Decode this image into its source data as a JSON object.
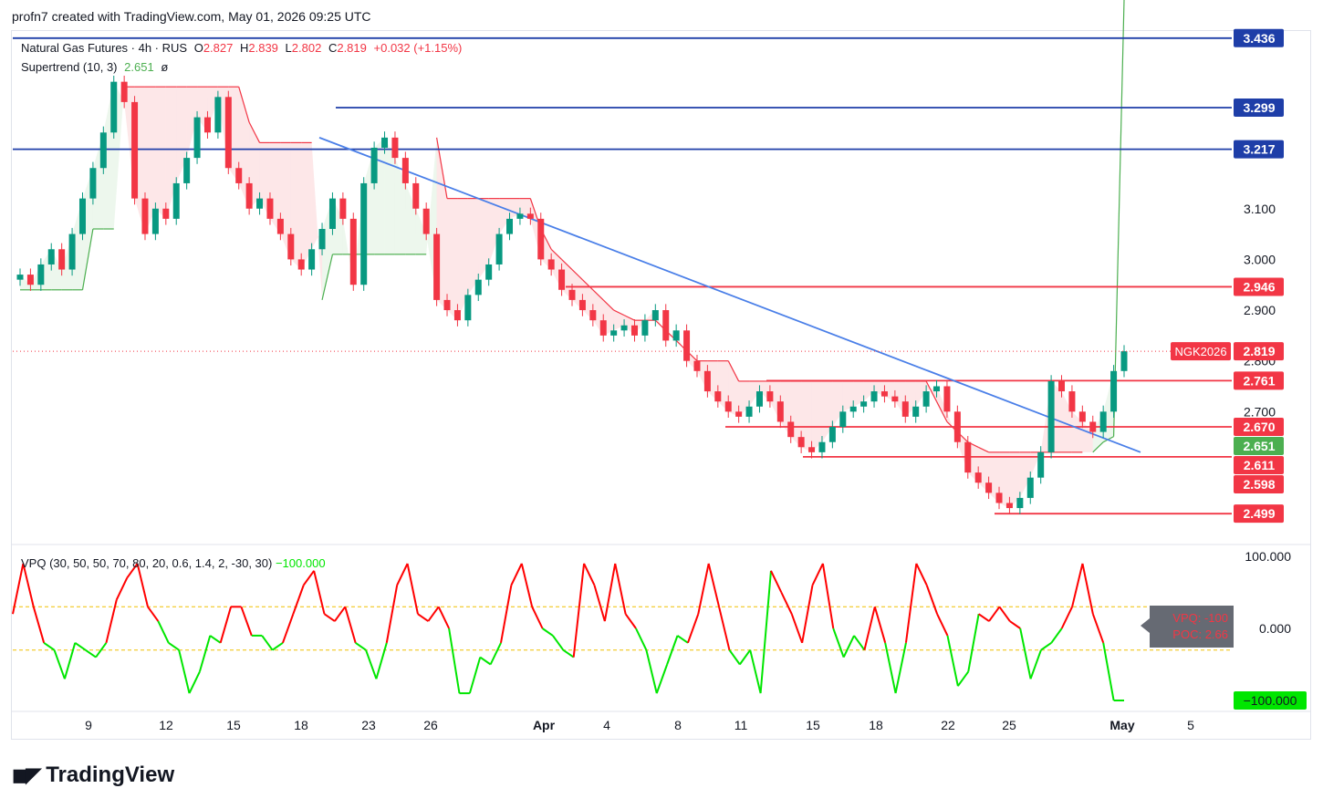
{
  "header": {
    "credit": "profn7 created with TradingView.com, May 01, 2026 09:25 UTC"
  },
  "legend": {
    "symbol": "Natural Gas Futures · 4h · RUS",
    "o_label": "O",
    "o": "2.827",
    "h_label": "H",
    "h": "2.839",
    "l_label": "L",
    "l": "2.802",
    "c_label": "C",
    "c": "2.819",
    "change": "+0.032 (+1.15%)",
    "supertrend_label": "Supertrend (10, 3)",
    "supertrend_value": "2.651",
    "supertrend_extra": "ø"
  },
  "vpq_legend": {
    "label": "VPQ (30, 50, 50, 70, 80, 20, 0.6, 1.4, 2, -30, 30)",
    "value": "−100.000"
  },
  "vpq_tooltip": {
    "line1": "VPQ: -100",
    "line2": "POC: 2.66"
  },
  "footer": {
    "brand": "TradingView"
  },
  "colors": {
    "up": "#089981",
    "down": "#f23645",
    "blue_line": "#1e3ea8",
    "trendline": "#4a7fe8",
    "supertrend_up": "#4caf50",
    "supertrend_down": "#f23645",
    "vpq_red": "#ff0000",
    "vpq_green": "#00e600"
  },
  "chart_data": [
    {
      "type": "candlestick",
      "title": "Natural Gas Futures · 4h · RUS",
      "y_ticks": [
        "3.100",
        "3.000",
        "2.900",
        "2.800",
        "2.700"
      ],
      "x_ticks": [
        "9",
        "12",
        "15",
        "18",
        "23",
        "26",
        "Apr",
        "4",
        "8",
        "11",
        "15",
        "18",
        "22",
        "25",
        "May",
        "5"
      ],
      "ylim": [
        2.44,
        3.45
      ],
      "last_price": {
        "symbol": "NGK2026",
        "value": "2.819"
      },
      "price_levels": [
        {
          "value": "3.436",
          "color": "#1e3ea8"
        },
        {
          "value": "3.299",
          "color": "#1e3ea8"
        },
        {
          "value": "3.217",
          "color": "#1e3ea8"
        },
        {
          "value": "2.946",
          "color": "#f23645"
        },
        {
          "value": "2.761",
          "color": "#f23645"
        },
        {
          "value": "2.670",
          "color": "#f23645"
        },
        {
          "value": "2.651",
          "color": "#4caf50"
        },
        {
          "value": "2.611",
          "color": "#f23645"
        },
        {
          "value": "2.598",
          "color": "#f23645"
        },
        {
          "value": "2.499",
          "color": "#f23645"
        }
      ],
      "trendline": {
        "from": 3.24,
        "to": 2.62
      },
      "close": [
        2.97,
        2.95,
        2.99,
        3.02,
        2.98,
        3.05,
        3.12,
        3.18,
        3.25,
        3.35,
        3.31,
        3.12,
        3.05,
        3.1,
        3.08,
        3.15,
        3.2,
        3.28,
        3.25,
        3.32,
        3.18,
        3.15,
        3.1,
        3.12,
        3.08,
        3.05,
        3.0,
        2.98,
        3.02,
        3.06,
        3.12,
        3.08,
        2.95,
        3.15,
        3.22,
        3.24,
        3.2,
        3.15,
        3.1,
        3.05,
        2.92,
        2.9,
        2.88,
        2.93,
        2.96,
        2.99,
        3.05,
        3.08,
        3.09,
        3.08,
        3.0,
        2.98,
        2.94,
        2.92,
        2.9,
        2.88,
        2.85,
        2.86,
        2.87,
        2.85,
        2.88,
        2.9,
        2.84,
        2.86,
        2.8,
        2.78,
        2.74,
        2.72,
        2.7,
        2.69,
        2.71,
        2.74,
        2.72,
        2.68,
        2.65,
        2.63,
        2.62,
        2.64,
        2.67,
        2.7,
        2.71,
        2.72,
        2.74,
        2.73,
        2.72,
        2.69,
        2.71,
        2.74,
        2.75,
        2.7,
        2.64,
        2.58,
        2.56,
        2.54,
        2.52,
        2.51,
        2.53,
        2.57,
        2.62,
        2.76,
        2.74,
        2.7,
        2.68,
        2.66,
        2.7,
        2.78,
        2.819
      ],
      "supertrend": [
        2.94,
        2.94,
        2.94,
        2.94,
        2.94,
        2.94,
        2.94,
        3.06,
        3.06,
        3.06,
        3.34,
        3.34,
        3.34,
        3.34,
        3.34,
        3.34,
        3.34,
        3.34,
        3.34,
        3.34,
        3.34,
        3.34,
        3.27,
        3.23,
        3.23,
        3.23,
        3.23,
        3.23,
        3.23,
        2.92,
        3.01,
        3.01,
        3.01,
        3.01,
        3.01,
        3.01,
        3.01,
        3.01,
        3.01,
        3.01,
        3.24,
        3.12,
        3.12,
        3.12,
        3.12,
        3.12,
        3.12,
        3.12,
        3.12,
        3.12,
        3.06,
        3.02,
        3.0,
        2.98,
        2.96,
        2.94,
        2.92,
        2.9,
        2.89,
        2.88,
        2.88,
        2.88,
        2.86,
        2.84,
        2.82,
        2.8,
        2.8,
        2.8,
        2.8,
        2.76,
        2.76,
        2.76,
        2.76,
        2.76,
        2.76,
        2.76,
        2.76,
        2.76,
        2.76,
        2.76,
        2.76,
        2.76,
        2.76,
        2.76,
        2.76,
        2.76,
        2.76,
        2.76,
        2.72,
        2.68,
        2.66,
        2.64,
        2.63,
        2.62,
        2.62,
        2.62,
        2.62,
        2.62,
        2.62,
        2.62,
        2.62,
        2.62,
        2.62,
        2.62,
        2.64,
        2.651
      ],
      "supertrend_direction": [
        "up",
        "up",
        "up",
        "up",
        "up",
        "up",
        "up",
        "up",
        "up",
        "up",
        "down",
        "down",
        "down",
        "down",
        "down",
        "down",
        "down",
        "down",
        "down",
        "down",
        "down",
        "down",
        "down",
        "down",
        "down",
        "down",
        "down",
        "down",
        "down",
        "up",
        "up",
        "up",
        "up",
        "up",
        "up",
        "up",
        "up",
        "up",
        "up",
        "up",
        "down",
        "down",
        "down",
        "down",
        "down",
        "down",
        "down",
        "down",
        "down",
        "down",
        "down",
        "down",
        "down",
        "down",
        "down",
        "down",
        "down",
        "down",
        "down",
        "down",
        "down",
        "down",
        "down",
        "down",
        "down",
        "down",
        "down",
        "down",
        "down",
        "down",
        "down",
        "down",
        "down",
        "down",
        "down",
        "down",
        "down",
        "down",
        "down",
        "down",
        "down",
        "down",
        "down",
        "down",
        "down",
        "down",
        "down",
        "down",
        "down",
        "down",
        "down",
        "down",
        "down",
        "down",
        "down",
        "down",
        "down",
        "down",
        "down",
        "down",
        "down",
        "down",
        "down",
        "up",
        "up",
        "up",
        "up"
      ]
    },
    {
      "type": "line",
      "title": "VPQ (30, 50, 50, 70, 80, 20, 0.6, 1.4, 2, -30, 30)",
      "y_ticks": [
        "100.000",
        "0.000"
      ],
      "ylim": [
        -100,
        100
      ],
      "thresholds": [
        30,
        -30
      ],
      "values": [
        20,
        90,
        30,
        -20,
        -30,
        -70,
        -20,
        -30,
        -40,
        -20,
        40,
        70,
        90,
        30,
        10,
        -20,
        -30,
        -90,
        -60,
        -10,
        -20,
        30,
        30,
        -10,
        -10,
        -30,
        -20,
        20,
        60,
        80,
        20,
        10,
        30,
        -20,
        -30,
        -70,
        -20,
        60,
        90,
        20,
        10,
        30,
        0,
        -90,
        -90,
        -40,
        -50,
        -20,
        60,
        90,
        30,
        0,
        -10,
        -30,
        -40,
        90,
        60,
        10,
        90,
        20,
        0,
        -30,
        -90,
        -50,
        -10,
        -20,
        20,
        90,
        30,
        -30,
        -50,
        -30,
        -90,
        80,
        50,
        20,
        -20,
        60,
        90,
        0,
        -40,
        -10,
        -30,
        30,
        -20,
        -90,
        -20,
        90,
        60,
        20,
        -10,
        -80,
        -60,
        20,
        10,
        30,
        10,
        0,
        -70,
        -30,
        -20,
        0,
        30,
        90,
        20,
        -20,
        -100,
        -100
      ],
      "sign": "red above, green below"
    }
  ]
}
